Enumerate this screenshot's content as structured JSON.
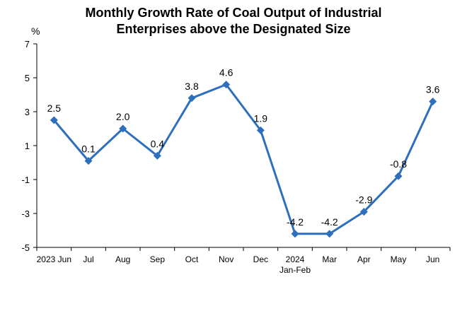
{
  "chart_data": {
    "type": "line",
    "title_lines": [
      "Monthly Growth Rate of Coal Output of Industrial",
      "Enterprises above the Designated Size"
    ],
    "unit": "%",
    "categories": [
      [
        "2023 Jun"
      ],
      [
        "Jul"
      ],
      [
        "Aug"
      ],
      [
        "Sep"
      ],
      [
        "Oct"
      ],
      [
        "Nov"
      ],
      [
        "Dec"
      ],
      [
        "2024",
        "Jan-Feb"
      ],
      [
        "Mar"
      ],
      [
        "Apr"
      ],
      [
        "May"
      ],
      [
        "Jun"
      ]
    ],
    "values": [
      2.5,
      0.1,
      2.0,
      0.4,
      3.8,
      4.6,
      1.9,
      -4.2,
      -4.2,
      -2.9,
      -0.8,
      3.6
    ],
    "data_labels": [
      "2.5",
      "0.1",
      "2.0",
      "0.4",
      "3.8",
      "4.6",
      "1.9",
      "-4.2",
      "-4.2",
      "-2.9",
      "-0.8",
      "3.6"
    ],
    "ylim": [
      -5,
      7
    ],
    "yticks": [
      -5,
      -3,
      -1,
      1,
      3,
      5,
      7
    ],
    "ytick_labels": [
      "-5",
      "-3",
      "-1",
      "1",
      "3",
      "5",
      "7"
    ],
    "grid": false,
    "line_color": "#2e6fbd",
    "marker": "diamond"
  }
}
